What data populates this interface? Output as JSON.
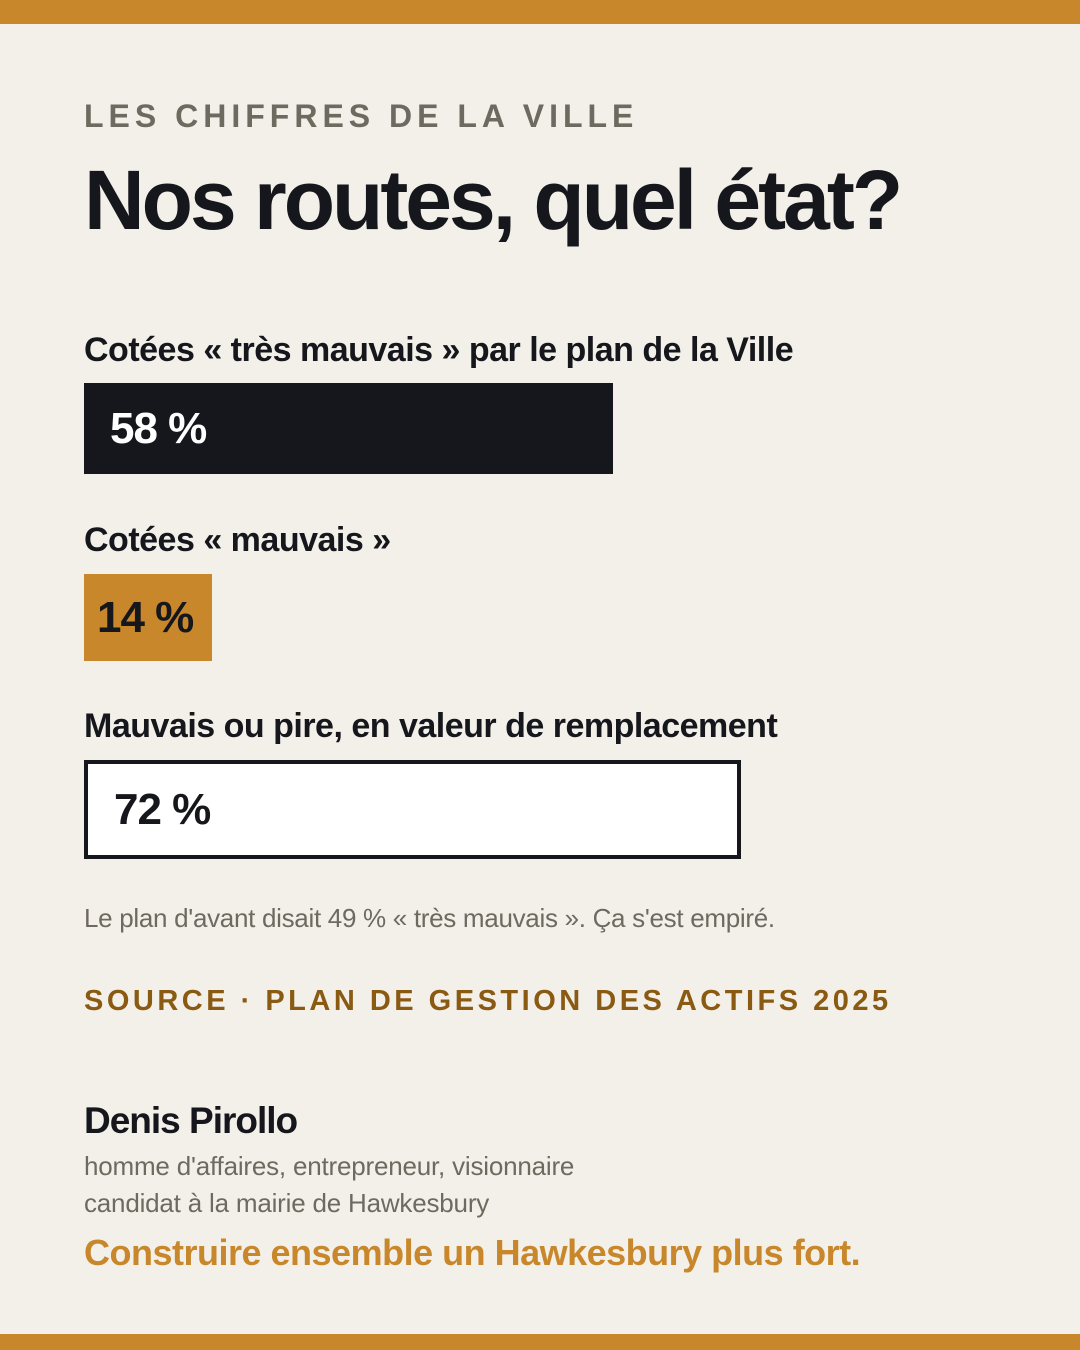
{
  "header": {
    "kicker": "LES CHIFFRES DE LA VILLE",
    "title": "Nos routes, quel état?"
  },
  "stats": [
    {
      "label": "Cotées « très mauvais » par le plan de la Ville",
      "value_text": "58 %",
      "value": 58,
      "color": "#15171c"
    },
    {
      "label": "Cotées « mauvais »",
      "value_text": "14 %",
      "value": 14,
      "color": "#c8872b"
    },
    {
      "label": "Mauvais ou pire, en valeur de remplacement",
      "value_text": "72 %",
      "value": 72,
      "color": "#ffffff"
    }
  ],
  "footnote": "Le plan d'avant disait 49 % « très mauvais ». Ça s'est empiré.",
  "source": "SOURCE · PLAN DE GESTION DES ACTIFS 2025",
  "signature": {
    "name": "Denis Pirollo",
    "role_line1": "homme d'affaires, entrepreneur, visionnaire",
    "role_line2": "candidat à la mairie de Hawkesbury",
    "slogan": "Construire ensemble un Hawkesbury plus fort."
  },
  "colors": {
    "background": "#f3f0ea",
    "accent": "#c8872b",
    "dark": "#15171c",
    "muted": "#6d6a5f",
    "source": "#8a5a12"
  }
}
